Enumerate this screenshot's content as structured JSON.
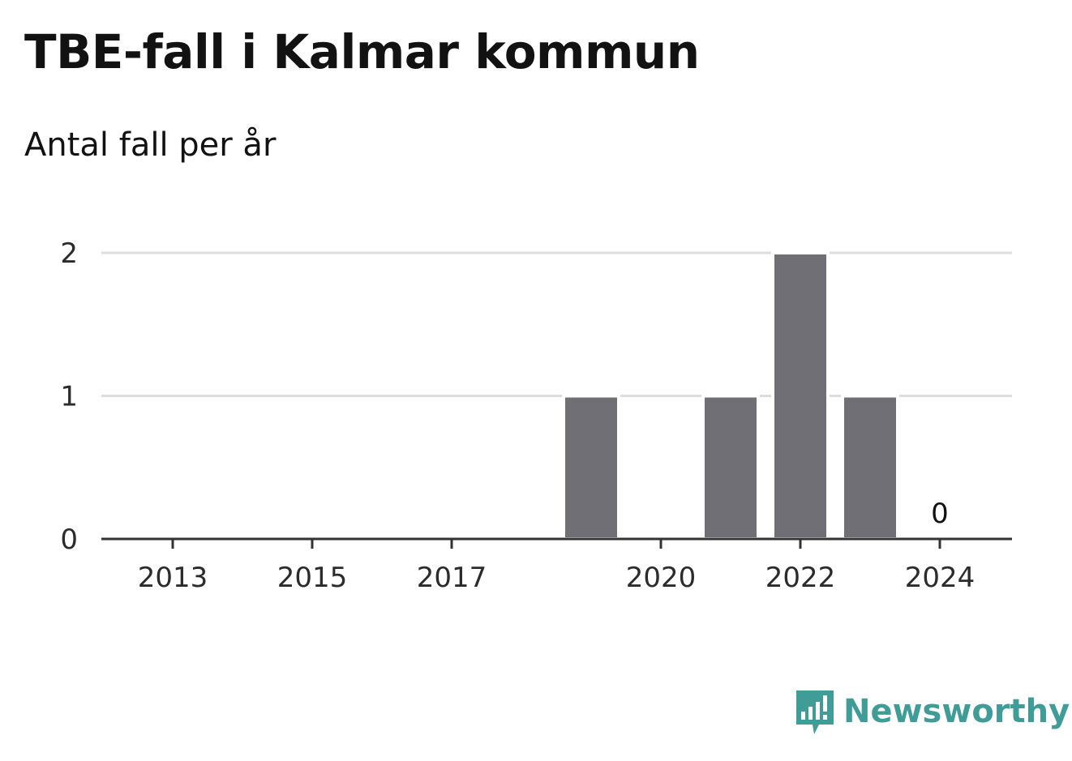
{
  "title": "TBE-fall i Kalmar kommun",
  "subtitle": "Antal fall per år",
  "brand": {
    "name": "Newsworthy",
    "icon": "newsworthy-logo-icon",
    "color": "#3f9c97"
  },
  "colors": {
    "bar": "#706f75",
    "grid": "#dddddd",
    "axis": "#333333"
  },
  "chart_data": {
    "type": "bar",
    "title": "TBE-fall i Kalmar kommun",
    "subtitle": "Antal fall per år",
    "categories": [
      "2013",
      "2014",
      "2015",
      "2016",
      "2017",
      "2018",
      "2019",
      "2020",
      "2021",
      "2022",
      "2023",
      "2024"
    ],
    "values": [
      0,
      0,
      0,
      0,
      0,
      0,
      1,
      0,
      1,
      2,
      1,
      0
    ],
    "xticks": [
      "2013",
      "2015",
      "2017",
      "2020",
      "2022",
      "2024"
    ],
    "yticks": [
      0,
      1,
      2
    ],
    "ylim": [
      0,
      2
    ],
    "data_labels": [
      {
        "category": "2024",
        "text": "0"
      }
    ],
    "grid": true,
    "legend": "none"
  }
}
